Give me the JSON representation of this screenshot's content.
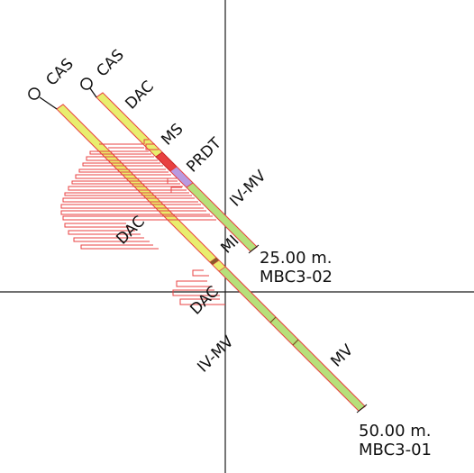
{
  "axes": {
    "color": "#1a1a1a"
  },
  "colors": {
    "casing": "#e8ee6e",
    "dacite": "#e8ee6e",
    "massive_sulfide": "#e84040",
    "prdt": "#b89ae0",
    "iv_mv": "#b6e07a",
    "mv": "#b6e07a",
    "trace": "#e84040",
    "ink": "#111111"
  },
  "holes": [
    {
      "id": "hole-mbc3-02",
      "collar_label": "CAS",
      "depth_label": "25.00 m.",
      "name_label": "MBC3-02",
      "unit_labels": [
        "DAC",
        "MS",
        "PRDT",
        "IV-MV",
        "MI"
      ]
    },
    {
      "id": "hole-mbc3-01",
      "collar_label": "CAS",
      "depth_label": "50.00 m.",
      "name_label": "MBC3-01",
      "unit_labels": [
        "DAC",
        "DAC",
        "IV-MV",
        "MV"
      ]
    }
  ]
}
